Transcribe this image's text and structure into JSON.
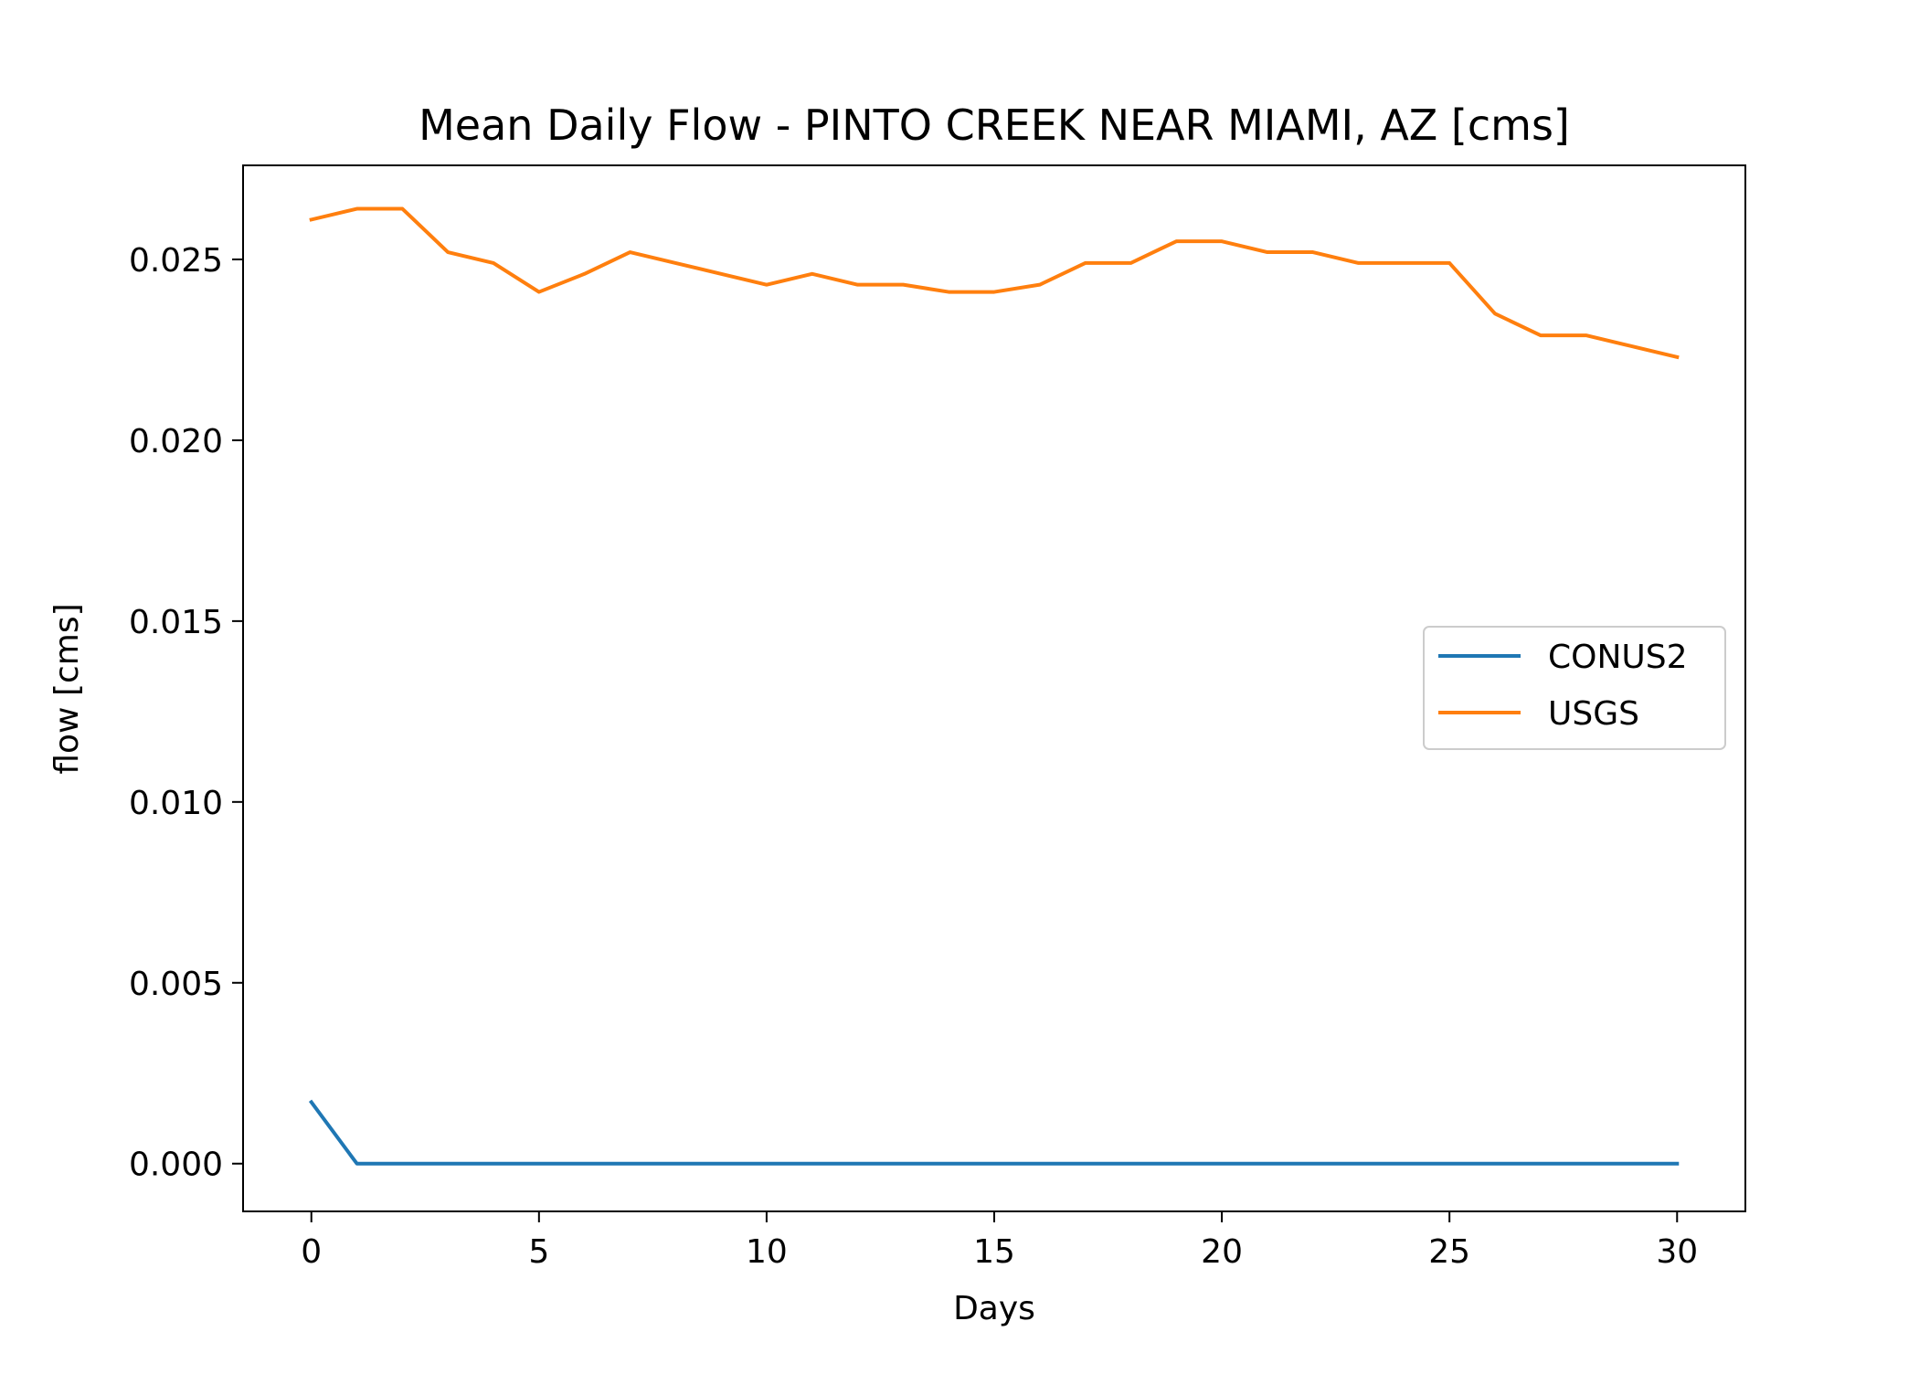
{
  "chart_data": {
    "type": "line",
    "title": "Mean Daily Flow - PINTO CREEK NEAR MIAMI, AZ [cms]",
    "xlabel": "Days",
    "ylabel": "flow [cms]",
    "xlim": [
      -1.5,
      31.5
    ],
    "ylim": [
      -0.00132,
      0.0276
    ],
    "xticks": [
      0,
      5,
      10,
      15,
      20,
      25,
      30
    ],
    "xtick_labels": [
      "0",
      "5",
      "10",
      "15",
      "20",
      "25",
      "30"
    ],
    "yticks": [
      0.0,
      0.005,
      0.01,
      0.015,
      0.02,
      0.025
    ],
    "ytick_labels": [
      "0.000",
      "0.005",
      "0.010",
      "0.015",
      "0.020",
      "0.025"
    ],
    "grid": false,
    "legend_position": "center-right",
    "x": [
      0,
      1,
      2,
      3,
      4,
      5,
      6,
      7,
      8,
      9,
      10,
      11,
      12,
      13,
      14,
      15,
      16,
      17,
      18,
      19,
      20,
      21,
      22,
      23,
      24,
      25,
      26,
      27,
      28,
      29,
      30
    ],
    "series": [
      {
        "name": "CONUS2",
        "color": "#1f77b4",
        "values": [
          0.0017,
          0,
          0,
          0,
          0,
          0,
          0,
          0,
          0,
          0,
          0,
          0,
          0,
          0,
          0,
          0,
          0,
          0,
          0,
          0,
          0,
          0,
          0,
          0,
          0,
          0,
          0,
          0,
          0,
          0,
          0
        ]
      },
      {
        "name": "USGS",
        "color": "#ff7f0e",
        "values": [
          0.0261,
          0.0264,
          0.0264,
          0.0252,
          0.0249,
          0.0241,
          0.0246,
          0.0252,
          0.0249,
          0.0246,
          0.0243,
          0.0246,
          0.0243,
          0.0243,
          0.0241,
          0.0241,
          0.0243,
          0.0249,
          0.0249,
          0.0255,
          0.0255,
          0.0252,
          0.0252,
          0.0249,
          0.0249,
          0.0249,
          0.0235,
          0.0229,
          0.0229,
          0.0226,
          0.0223
        ]
      }
    ]
  }
}
